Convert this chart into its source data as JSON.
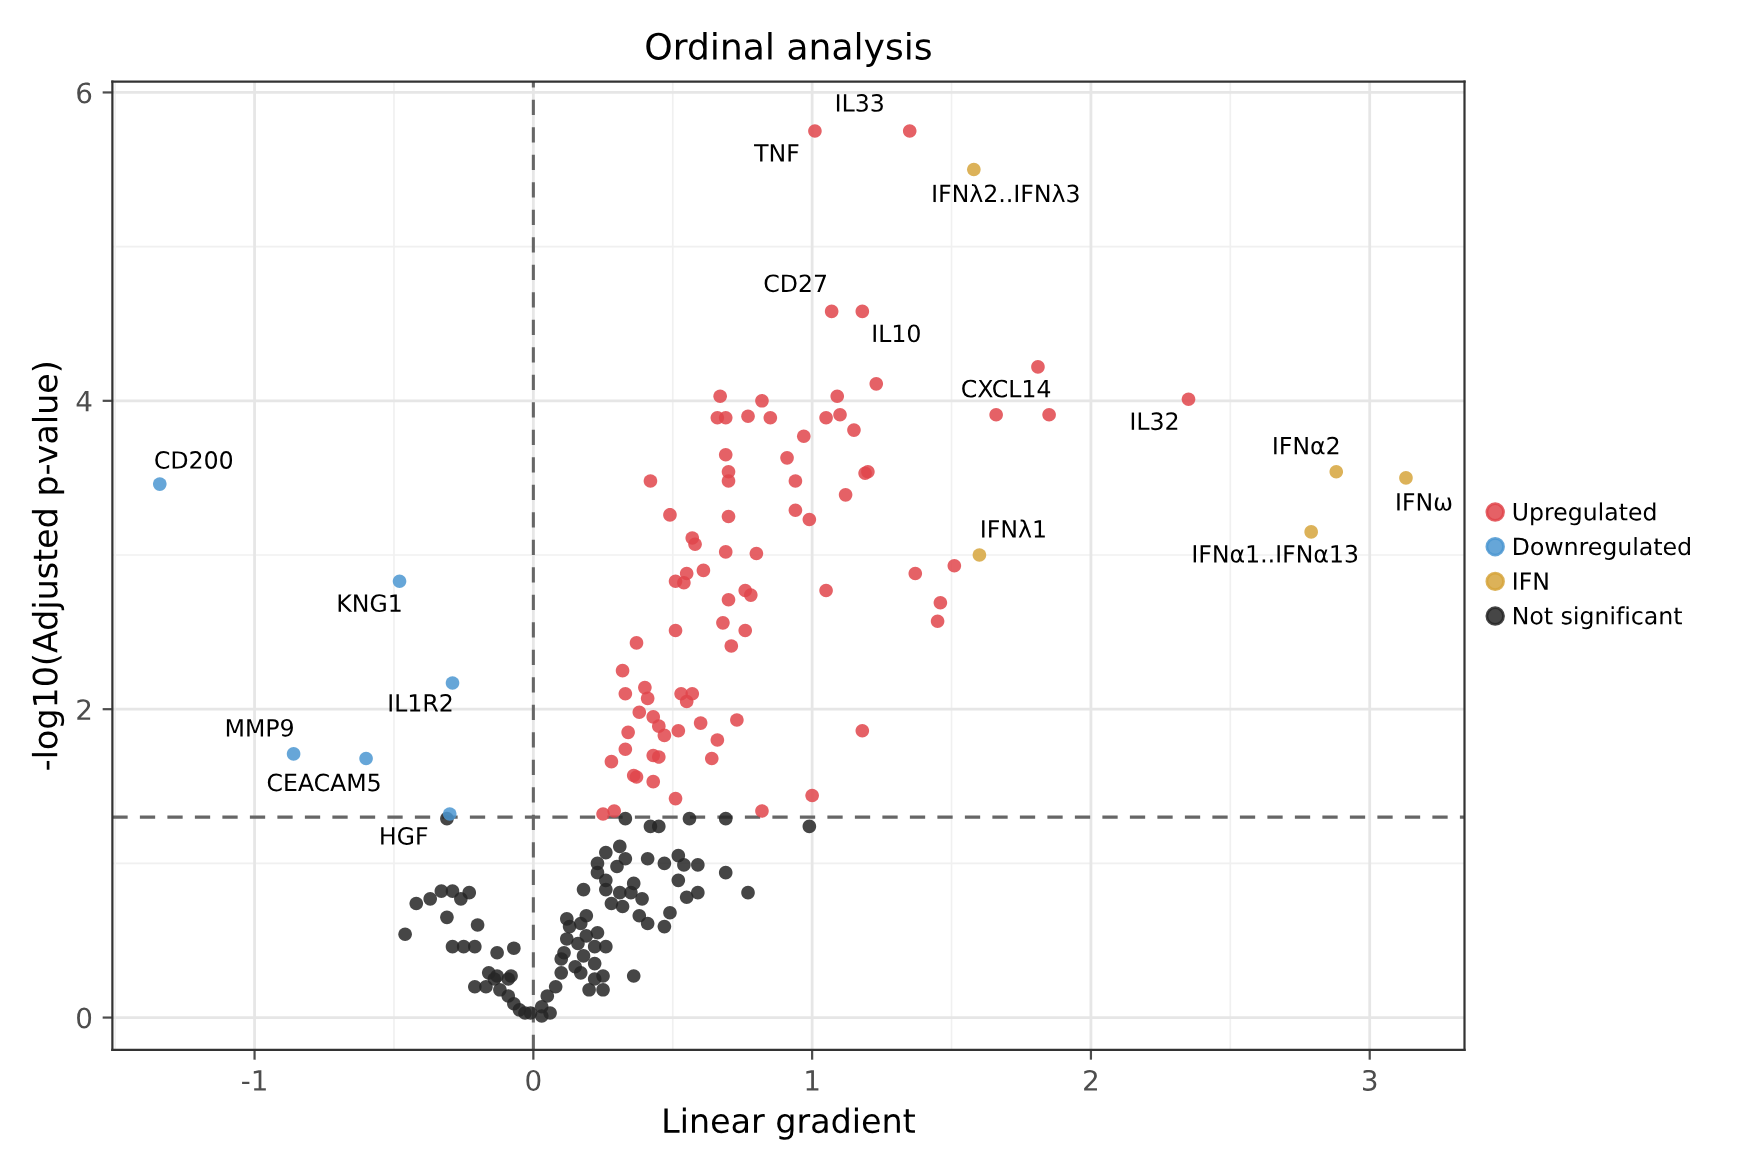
{
  "chart_data": {
    "type": "scatter",
    "title": "Ordinal analysis",
    "xlabel": "Linear gradient",
    "ylabel": "-log10(Adjusted p-value)",
    "xlim": [
      -1.51,
      3.34
    ],
    "ylim": [
      -0.21,
      6.07
    ],
    "xticks": [
      -1,
      0,
      1,
      2,
      3
    ],
    "yticks": [
      0,
      2,
      4,
      6
    ],
    "grid": true,
    "legend": "right",
    "marker": "circle",
    "ref_lines": [
      {
        "axis": "x",
        "value": 0,
        "line_style": "dashed",
        "color": "#666666"
      },
      {
        "axis": "y",
        "value": 1.3,
        "line_style": "dashed",
        "color": "#666666"
      }
    ],
    "series": [
      {
        "name": "Upregulated",
        "color": "#e0454b",
        "x": [
          1.01,
          1.35,
          1.07,
          1.18,
          1.81,
          1.23,
          2.35,
          1.66,
          1.85,
          0.82,
          0.85,
          1.09,
          1.05,
          1.1,
          0.97,
          1.15,
          0.91,
          0.94,
          1.19,
          1.2,
          1.12,
          0.94,
          0.99,
          0.8,
          1.37,
          1.51,
          1.05,
          1.46,
          1.45,
          0.67,
          0.66,
          0.69,
          0.77,
          0.69,
          0.42,
          0.7,
          0.7,
          0.49,
          0.7,
          0.57,
          0.58,
          0.69,
          0.55,
          0.51,
          0.54,
          0.61,
          0.7,
          0.76,
          0.78,
          0.51,
          0.68,
          0.76,
          0.37,
          0.71,
          0.32,
          0.33,
          0.4,
          0.41,
          0.53,
          0.57,
          0.55,
          0.38,
          0.43,
          0.45,
          0.47,
          0.34,
          0.6,
          0.73,
          0.52,
          0.66,
          1.18,
          0.33,
          0.43,
          0.45,
          0.64,
          0.28,
          0.36,
          0.37,
          0.43,
          0.51,
          1.0,
          0.82,
          0.25,
          0.29
        ],
        "values": [
          5.75,
          5.75,
          4.58,
          4.58,
          4.22,
          4.11,
          4.01,
          3.91,
          3.91,
          4.0,
          3.89,
          4.03,
          3.89,
          3.91,
          3.77,
          3.81,
          3.63,
          3.48,
          3.53,
          3.54,
          3.39,
          3.29,
          3.23,
          3.01,
          2.88,
          2.93,
          2.77,
          2.69,
          2.57,
          4.03,
          3.89,
          3.89,
          3.9,
          3.65,
          3.48,
          3.54,
          3.48,
          3.26,
          3.25,
          3.11,
          3.07,
          3.02,
          2.88,
          2.83,
          2.82,
          2.9,
          2.71,
          2.77,
          2.74,
          2.51,
          2.56,
          2.51,
          2.43,
          2.41,
          2.25,
          2.1,
          2.14,
          2.07,
          2.1,
          2.1,
          2.05,
          1.98,
          1.95,
          1.89,
          1.83,
          1.85,
          1.91,
          1.93,
          1.86,
          1.8,
          1.86,
          1.74,
          1.7,
          1.69,
          1.68,
          1.66,
          1.57,
          1.56,
          1.53,
          1.42,
          1.44,
          1.34,
          1.32,
          1.34
        ]
      },
      {
        "name": "Downregulated",
        "color": "#4b96d1",
        "x": [
          -1.34,
          -0.48,
          -0.29,
          -0.86,
          -0.6,
          -0.3
        ],
        "values": [
          3.46,
          2.83,
          2.17,
          1.71,
          1.68,
          1.32
        ]
      },
      {
        "name": "IFN",
        "color": "#d6a53c",
        "x": [
          1.58,
          2.88,
          3.13,
          2.79,
          1.6
        ],
        "values": [
          5.5,
          3.54,
          3.5,
          3.15,
          3.0
        ]
      },
      {
        "name": "Not significant",
        "color": "#262626",
        "x": [
          -0.31,
          0.33,
          0.42,
          0.45,
          0.56,
          0.69,
          0.99,
          0.31,
          0.26,
          0.23,
          0.33,
          0.3,
          0.41,
          0.47,
          0.52,
          0.54,
          0.59,
          0.69,
          0.77,
          0.52,
          0.59,
          0.55,
          0.49,
          0.47,
          0.41,
          0.38,
          0.32,
          0.28,
          0.26,
          0.31,
          0.35,
          0.18,
          0.19,
          0.17,
          0.13,
          0.12,
          0.11,
          0.16,
          0.19,
          0.22,
          0.18,
          0.15,
          0.1,
          0.08,
          0.05,
          0.03,
          -0.01,
          -0.05,
          -0.07,
          -0.09,
          -0.12,
          -0.09,
          -0.14,
          -0.17,
          -0.21,
          -0.16,
          -0.13,
          -0.08,
          -0.13,
          -0.07,
          -0.29,
          -0.25,
          -0.21,
          -0.31,
          -0.2,
          -0.46,
          -0.42,
          -0.37,
          -0.33,
          -0.29,
          -0.26,
          -0.23,
          0.36,
          0.25,
          0.25,
          0.2,
          0.22,
          0.1,
          0.12,
          0.23,
          0.26,
          0.22,
          0.17,
          0.06,
          0.03,
          -0.03,
          0.23,
          0.26,
          0.36,
          0.39
        ],
        "values": [
          1.29,
          1.29,
          1.24,
          1.24,
          1.29,
          1.29,
          1.24,
          1.11,
          1.07,
          1.0,
          1.03,
          0.98,
          1.03,
          1.0,
          1.05,
          0.99,
          0.99,
          0.94,
          0.81,
          0.89,
          0.81,
          0.78,
          0.68,
          0.59,
          0.61,
          0.66,
          0.72,
          0.74,
          0.83,
          0.81,
          0.81,
          0.83,
          0.66,
          0.61,
          0.59,
          0.51,
          0.42,
          0.48,
          0.53,
          0.46,
          0.4,
          0.33,
          0.29,
          0.2,
          0.14,
          0.07,
          0.03,
          0.05,
          0.09,
          0.14,
          0.18,
          0.25,
          0.25,
          0.2,
          0.2,
          0.29,
          0.27,
          0.27,
          0.42,
          0.45,
          0.46,
          0.46,
          0.46,
          0.65,
          0.6,
          0.54,
          0.74,
          0.77,
          0.82,
          0.82,
          0.77,
          0.81,
          0.27,
          0.27,
          0.18,
          0.18,
          0.25,
          0.38,
          0.64,
          0.55,
          0.46,
          0.35,
          0.29,
          0.03,
          0.01,
          0.03,
          0.94,
          0.89,
          0.87,
          0.77
        ]
      }
    ],
    "annotations": [
      {
        "text": "IL33",
        "x": 1.35,
        "y": 5.75
      },
      {
        "text": "TNF",
        "x": 1.01,
        "y": 5.75
      },
      {
        "text": "IFNλ2..IFNλ3",
        "x": 1.58,
        "y": 5.5
      },
      {
        "text": "CD27",
        "x": 1.07,
        "y": 4.58
      },
      {
        "text": "IL10",
        "x": 1.18,
        "y": 4.58
      },
      {
        "text": "CXCL14",
        "x": 1.66,
        "y": 3.91
      },
      {
        "text": "IL32",
        "x": 2.35,
        "y": 4.01
      },
      {
        "text": "IFNα2",
        "x": 2.88,
        "y": 3.54
      },
      {
        "text": "IFNω",
        "x": 3.13,
        "y": 3.5
      },
      {
        "text": "IFNα1..IFNα13",
        "x": 2.79,
        "y": 3.15
      },
      {
        "text": "IFNλ1",
        "x": 1.6,
        "y": 3.0
      },
      {
        "text": "CD200",
        "x": -1.34,
        "y": 3.46
      },
      {
        "text": "KNG1",
        "x": -0.48,
        "y": 2.83
      },
      {
        "text": "IL1R2",
        "x": -0.29,
        "y": 2.17
      },
      {
        "text": "MMP9",
        "x": -0.86,
        "y": 1.71
      },
      {
        "text": "CEACAM5",
        "x": -0.6,
        "y": 1.68
      },
      {
        "text": "HGF",
        "x": -0.3,
        "y": 1.32
      }
    ]
  }
}
